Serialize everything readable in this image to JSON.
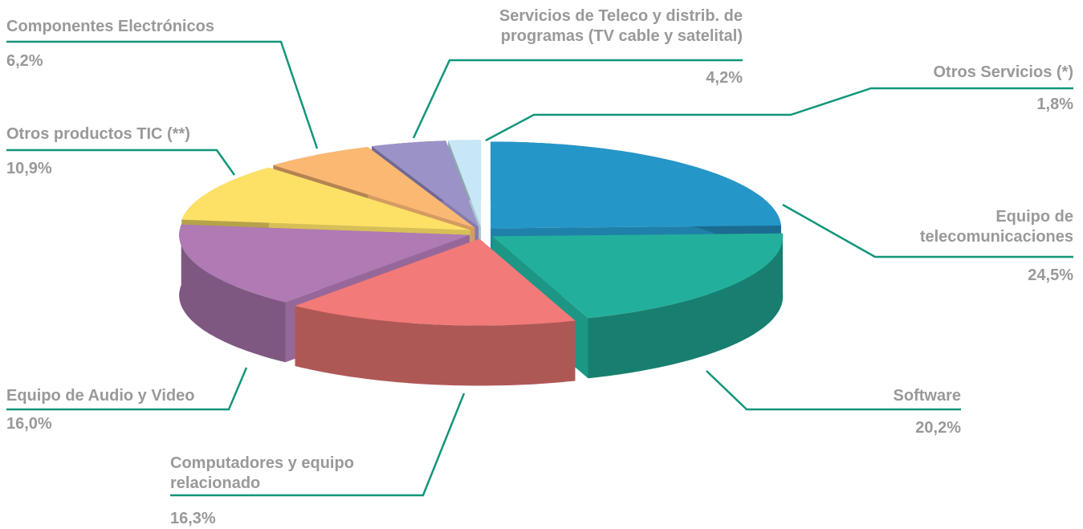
{
  "chart_data": {
    "type": "pie",
    "categories": [
      "Equipo de telecomunicaciones",
      "Software",
      "Computadores y equipo relacionado",
      "Equipo de Audio y Video",
      "Otros productos TIC (**)",
      "Componentes Electrónicos",
      "Servicios de Teleco y distrib.  de programas (TV cable y satelital)",
      "Otros Servicios (*)"
    ],
    "values": [
      24.5,
      20.2,
      16.3,
      16.0,
      10.9,
      6.2,
      4.2,
      1.8
    ],
    "value_labels": [
      "24,5%",
      "20,2%",
      "16,3%",
      "16,0%",
      "10,9%",
      "6,2%",
      "4,2%",
      "1,8%"
    ],
    "colors": [
      "#2596c8",
      "#22b09c",
      "#f27a78",
      "#b07ab5",
      "#fde167",
      "#fbb873",
      "#9b92c8",
      "#c7e6f6"
    ]
  }
}
